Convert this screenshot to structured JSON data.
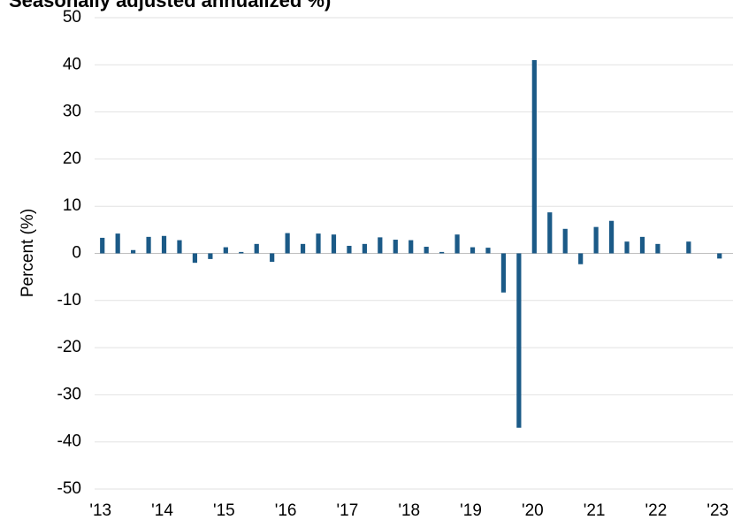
{
  "chart_data": {
    "type": "bar",
    "title": "Seasonally adjusted annualized %)",
    "y_label": "Percent (%)",
    "categories": [
      "'13",
      null,
      null,
      null,
      "'14",
      null,
      null,
      null,
      "'15",
      null,
      null,
      null,
      "'16",
      null,
      null,
      null,
      "'17",
      null,
      null,
      null,
      "'18",
      null,
      null,
      null,
      "'19",
      null,
      null,
      null,
      "'20",
      null,
      null,
      null,
      "'21",
      null,
      null,
      null,
      "'22",
      null,
      null,
      null,
      "'23"
    ],
    "values": [
      3.3,
      4.2,
      0.7,
      3.5,
      3.7,
      2.8,
      -2.0,
      -1.2,
      1.3,
      0.3,
      2.0,
      -1.8,
      4.3,
      2.0,
      4.2,
      4.0,
      1.6,
      2.0,
      3.4,
      2.9,
      2.8,
      1.4,
      0.3,
      4.0,
      1.3,
      1.2,
      -8.3,
      -37.0,
      41.0,
      8.7,
      5.2,
      -2.3,
      5.6,
      6.9,
      2.5,
      3.5,
      2.0,
      null,
      2.5,
      null,
      -1.1
    ],
    "color": "#1b5a87",
    "ylim": [
      -50,
      50
    ],
    "yticks": [
      -50,
      -40,
      -30,
      -20,
      -10,
      0,
      10,
      20,
      30,
      40,
      50
    ],
    "grid": true
  }
}
